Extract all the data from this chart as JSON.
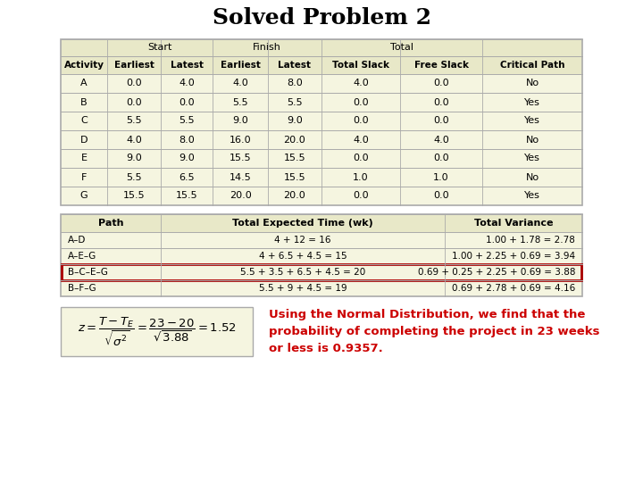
{
  "title": "Solved Problem 2",
  "bg_color": "#ffffff",
  "table1_header_row1_labels": [
    "Start",
    "Finish",
    "Total"
  ],
  "table1_header_row2": [
    "Activity",
    "Earliest",
    "Latest",
    "Earliest",
    "Latest",
    "Total Slack",
    "Free Slack",
    "Critical Path"
  ],
  "table1_data": [
    [
      "A",
      "0.0",
      "4.0",
      "4.0",
      "8.0",
      "4.0",
      "0.0",
      "No"
    ],
    [
      "B",
      "0.0",
      "0.0",
      "5.5",
      "5.5",
      "0.0",
      "0.0",
      "Yes"
    ],
    [
      "C",
      "5.5",
      "5.5",
      "9.0",
      "9.0",
      "0.0",
      "0.0",
      "Yes"
    ],
    [
      "D",
      "4.0",
      "8.0",
      "16.0",
      "20.0",
      "4.0",
      "4.0",
      "No"
    ],
    [
      "E",
      "9.0",
      "9.0",
      "15.5",
      "15.5",
      "0.0",
      "0.0",
      "Yes"
    ],
    [
      "F",
      "5.5",
      "6.5",
      "14.5",
      "15.5",
      "1.0",
      "1.0",
      "No"
    ],
    [
      "G",
      "15.5",
      "15.5",
      "20.0",
      "20.0",
      "0.0",
      "0.0",
      "Yes"
    ]
  ],
  "table1_header_bg": "#e8e8c8",
  "table1_body_bg": "#f5f5e0",
  "table2_headers": [
    "Path",
    "Total Expected Time (wk)",
    "Total Variance"
  ],
  "table2_data": [
    [
      "A–D",
      "4 + 12 = 16",
      "1.00 + 1.78 = 2.78"
    ],
    [
      "A–E–G",
      "4 + 6.5 + 4.5 = 15",
      "1.00 + 2.25 + 0.69 = 3.94"
    ],
    [
      "B–C–E–G",
      "5.5 + 3.5 + 6.5 + 4.5 = 20",
      "0.69 + 0.25 + 2.25 + 0.69 = 3.88"
    ],
    [
      "B–F–G",
      "5.5 + 9 + 4.5 = 19",
      "0.69 + 2.78 + 0.69 = 4.16"
    ]
  ],
  "table2_highlight_row": 2,
  "table2_header_bg": "#e8e8c8",
  "table2_body_bg": "#f5f5e0",
  "highlight_color": "#aa0000",
  "description_text": "Using the Normal Distribution, we find that the\nprobability of completing the project in 23 weeks\nor less is 0.9357.",
  "description_color": "#cc0000",
  "border_color": "#aaaaaa",
  "line_color": "#aaaaaa"
}
